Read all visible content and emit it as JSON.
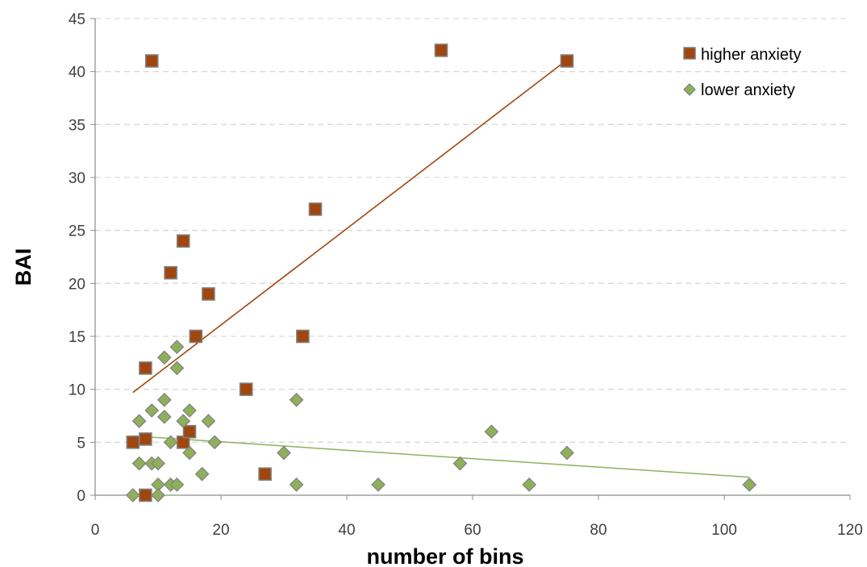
{
  "chart_data": {
    "type": "scatter",
    "xlabel": "number of bins",
    "ylabel": "BAI",
    "xlim": [
      0,
      120
    ],
    "ylim": [
      0,
      45
    ],
    "xticks": [
      "0",
      "20",
      "40",
      "60",
      "80",
      "100",
      "120"
    ],
    "yticks": [
      "0",
      "5",
      "10",
      "15",
      "20",
      "25",
      "30",
      "35",
      "40",
      "45"
    ],
    "grid": "horizontal dashed",
    "legend_position": "top-right",
    "series": [
      {
        "name": "higher anxiety",
        "marker": "square",
        "color": "#A0460E",
        "points": [
          [
            6,
            5
          ],
          [
            8,
            5.3
          ],
          [
            8,
            0
          ],
          [
            8,
            12
          ],
          [
            9,
            41
          ],
          [
            12,
            21
          ],
          [
            14,
            24
          ],
          [
            14,
            5
          ],
          [
            15,
            6
          ],
          [
            16,
            15
          ],
          [
            18,
            19
          ],
          [
            24,
            10
          ],
          [
            27,
            2
          ],
          [
            33,
            15
          ],
          [
            35,
            27
          ],
          [
            55,
            42
          ],
          [
            75,
            41
          ]
        ],
        "trendline": {
          "x": [
            6,
            75
          ],
          "y": [
            9.7,
            41.1
          ],
          "color": "#A0460E"
        }
      },
      {
        "name": "lower anxiety",
        "marker": "diamond",
        "color": "#8FB05A",
        "points": [
          [
            6,
            0
          ],
          [
            7,
            3
          ],
          [
            7,
            7
          ],
          [
            9,
            3
          ],
          [
            9,
            8
          ],
          [
            10,
            3
          ],
          [
            10,
            1
          ],
          [
            10,
            0
          ],
          [
            11,
            13
          ],
          [
            11,
            9
          ],
          [
            11,
            7.4
          ],
          [
            12,
            5
          ],
          [
            12,
            1
          ],
          [
            13,
            14
          ],
          [
            13,
            12
          ],
          [
            13,
            1
          ],
          [
            14,
            7
          ],
          [
            15,
            8
          ],
          [
            15,
            4
          ],
          [
            17,
            2
          ],
          [
            18,
            7
          ],
          [
            19,
            5
          ],
          [
            30,
            4
          ],
          [
            32,
            9
          ],
          [
            32,
            1
          ],
          [
            45,
            1
          ],
          [
            58,
            3
          ],
          [
            63,
            6
          ],
          [
            69,
            1
          ],
          [
            75,
            4
          ],
          [
            104,
            1
          ]
        ],
        "trendline": {
          "x": [
            6,
            104
          ],
          "y": [
            5.6,
            1.7
          ],
          "color": "#8FB05A"
        }
      }
    ]
  }
}
